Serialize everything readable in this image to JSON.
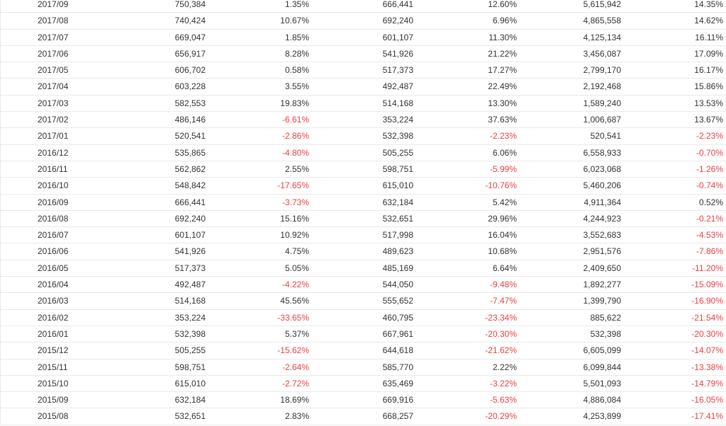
{
  "table": {
    "rows": [
      [
        "2017/09",
        "750,384",
        "1.35%",
        "666,441",
        "12.60%",
        "5,615,942",
        "14.35%"
      ],
      [
        "2017/08",
        "740,424",
        "10.67%",
        "692,240",
        "6.96%",
        "4,865,558",
        "14.62%"
      ],
      [
        "2017/07",
        "669,047",
        "1.85%",
        "601,107",
        "11.30%",
        "4,125,134",
        "16.11%"
      ],
      [
        "2017/06",
        "656,917",
        "8.28%",
        "541,926",
        "21.22%",
        "3,456,087",
        "17.09%"
      ],
      [
        "2017/05",
        "606,702",
        "0.58%",
        "517,373",
        "17.27%",
        "2,799,170",
        "16.17%"
      ],
      [
        "2017/04",
        "603,228",
        "3.55%",
        "492,487",
        "22.49%",
        "2,192,468",
        "15.86%"
      ],
      [
        "2017/03",
        "582,553",
        "19.83%",
        "514,168",
        "13.30%",
        "1,589,240",
        "13.53%"
      ],
      [
        "2017/02",
        "486,146",
        "-6.61%",
        "353,224",
        "37.63%",
        "1,006,687",
        "13.67%"
      ],
      [
        "2017/01",
        "520,541",
        "-2.86%",
        "532,398",
        "-2.23%",
        "520,541",
        "-2.23%"
      ],
      [
        "2016/12",
        "535,865",
        "-4.80%",
        "505,255",
        "6.06%",
        "6,558,933",
        "-0.70%"
      ],
      [
        "2016/11",
        "562,862",
        "2.55%",
        "598,751",
        "-5.99%",
        "6,023,068",
        "-1.26%"
      ],
      [
        "2016/10",
        "548,842",
        "-17.65%",
        "615,010",
        "-10.76%",
        "5,460,206",
        "-0.74%"
      ],
      [
        "2016/09",
        "666,441",
        "-3.73%",
        "632,184",
        "5.42%",
        "4,911,364",
        "0.52%"
      ],
      [
        "2016/08",
        "692,240",
        "15.16%",
        "532,651",
        "29.96%",
        "4,244,923",
        "-0.21%"
      ],
      [
        "2016/07",
        "601,107",
        "10.92%",
        "517,998",
        "16.04%",
        "3,552,683",
        "-4.53%"
      ],
      [
        "2016/06",
        "541,926",
        "4.75%",
        "489,623",
        "10.68%",
        "2,951,576",
        "-7.86%"
      ],
      [
        "2016/05",
        "517,373",
        "5.05%",
        "485,169",
        "6.64%",
        "2,409,650",
        "-11.20%"
      ],
      [
        "2016/04",
        "492,487",
        "-4.22%",
        "544,050",
        "-9.48%",
        "1,892,277",
        "-15.09%"
      ],
      [
        "2016/03",
        "514,168",
        "45.56%",
        "555,652",
        "-7.47%",
        "1,399,790",
        "-16.90%"
      ],
      [
        "2016/02",
        "353,224",
        "-33.65%",
        "460,795",
        "-23.34%",
        "885,622",
        "-21.54%"
      ],
      [
        "2016/01",
        "532,398",
        "5.37%",
        "667,961",
        "-20.30%",
        "532,398",
        "-20.30%"
      ],
      [
        "2015/12",
        "505,255",
        "-15.62%",
        "644,618",
        "-21.62%",
        "6,605,099",
        "-14.07%"
      ],
      [
        "2015/11",
        "598,751",
        "-2.64%",
        "585,770",
        "2.22%",
        "6,099,844",
        "-13.38%"
      ],
      [
        "2015/10",
        "615,010",
        "-2.72%",
        "635,469",
        "-3.22%",
        "5,501,093",
        "-14.79%"
      ],
      [
        "2015/09",
        "632,184",
        "18.69%",
        "669,916",
        "-5.63%",
        "4,886,084",
        "-16.05%"
      ],
      [
        "2015/08",
        "532,651",
        "2.83%",
        "668,257",
        "-20.29%",
        "4,253,899",
        "-17.41%"
      ]
    ],
    "colors": {
      "text": "#333333",
      "negative": "#ea3f3f",
      "border": "#e9e9e9"
    }
  }
}
